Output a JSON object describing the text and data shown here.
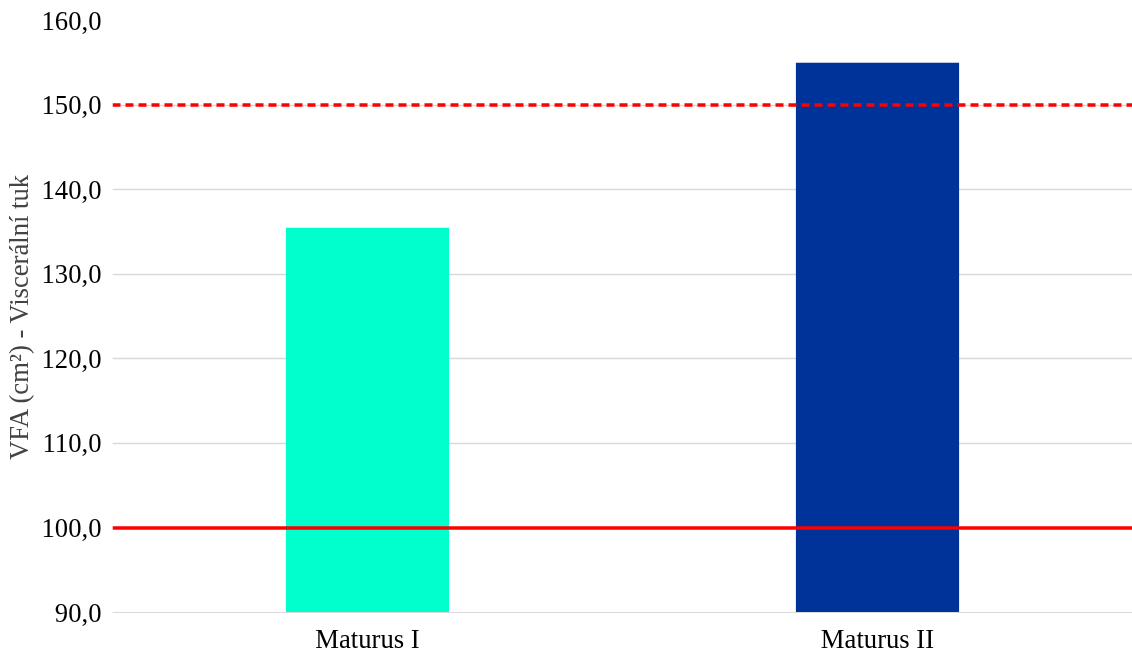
{
  "chart_data": {
    "type": "bar",
    "ylabel": "VFA (cm²) - Viscerální tuk",
    "categories": [
      "Maturus I",
      "Maturus II"
    ],
    "values": [
      135.5,
      155.0
    ],
    "colors": [
      "#00ffcc",
      "#003399"
    ],
    "ylim": [
      90,
      160
    ],
    "yticks": [
      {
        "value": 90,
        "label": "90,0"
      },
      {
        "value": 100,
        "label": "100,0"
      },
      {
        "value": 110,
        "label": "110,0"
      },
      {
        "value": 120,
        "label": "120,0"
      },
      {
        "value": 130,
        "label": "130,0"
      },
      {
        "value": 140,
        "label": "140,0"
      },
      {
        "value": 150,
        "label": "150,0"
      },
      {
        "value": 160,
        "label": "160,0"
      }
    ],
    "grid": "y",
    "ref_lines": [
      {
        "axis": "y",
        "value": 150,
        "color": "#ff0000",
        "line_style": "dashed"
      },
      {
        "axis": "y",
        "value": 100,
        "color": "#ff0000",
        "line_style": "solid"
      }
    ]
  }
}
